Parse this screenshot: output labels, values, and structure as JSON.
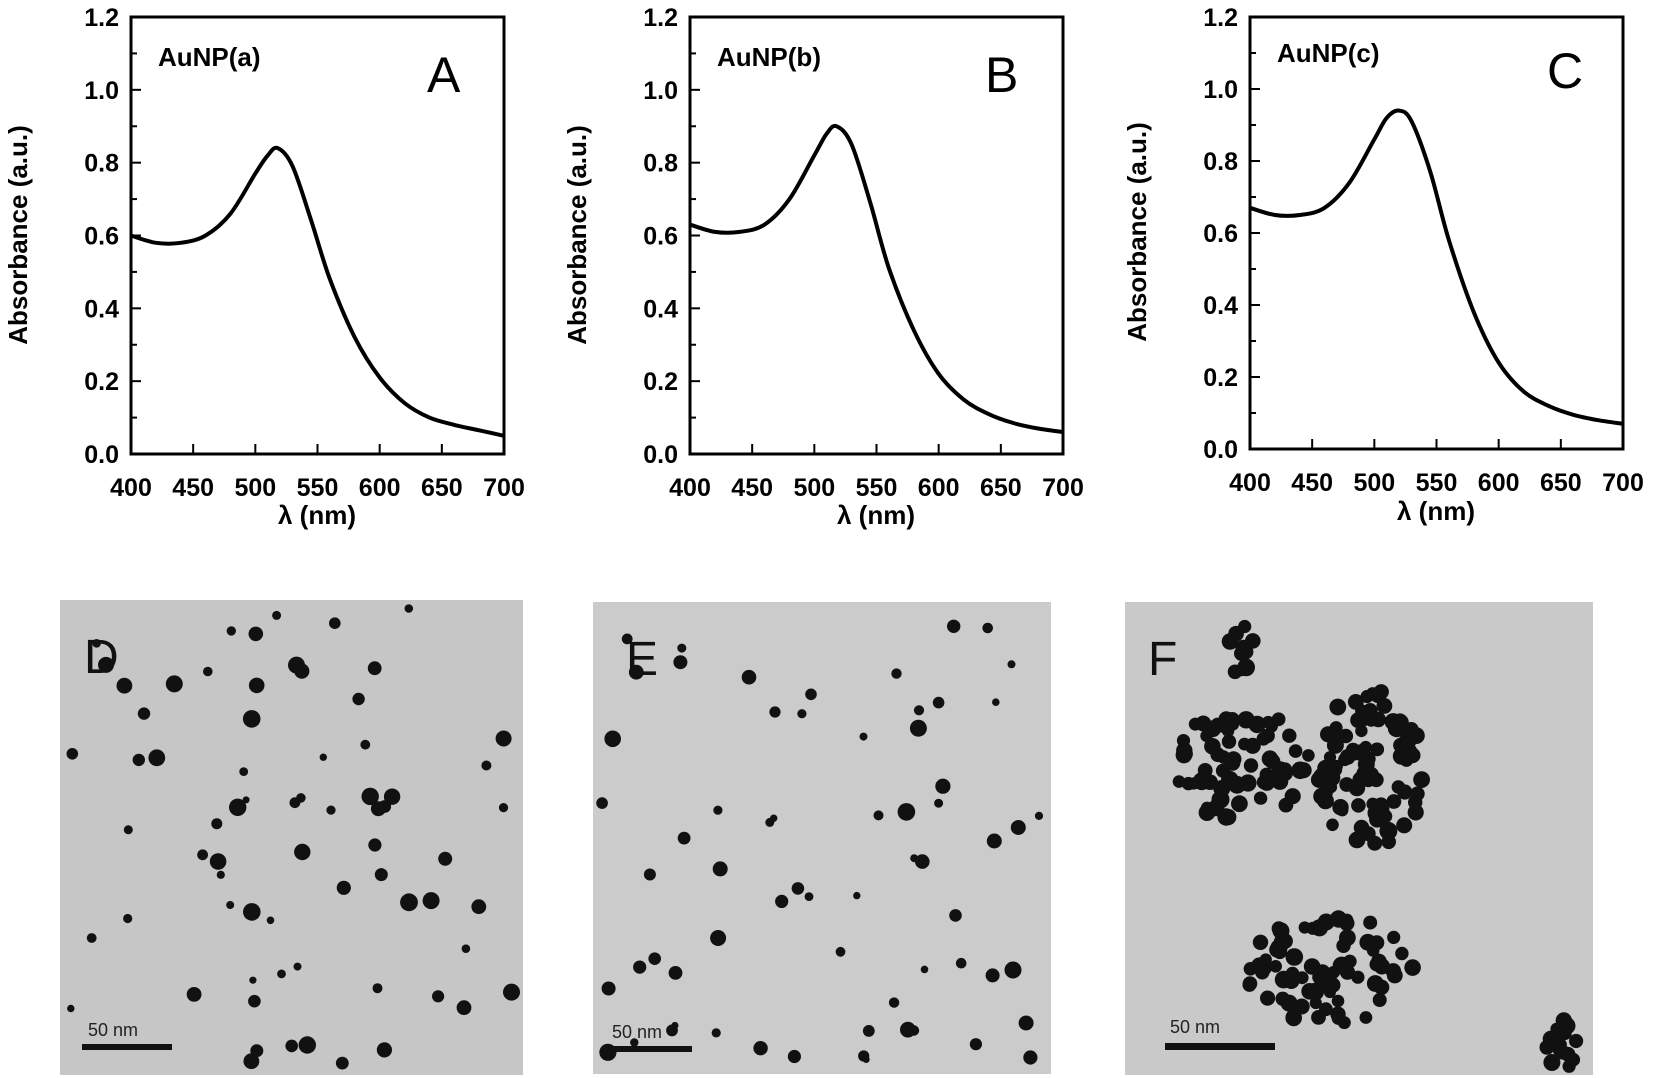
{
  "chart_data": [
    {
      "type": "line",
      "panel": "A",
      "sample_label": "AuNP(a)",
      "xlabel": "λ (nm)",
      "ylabel": "Absorbance (a.u.)",
      "xlim": [
        400,
        700
      ],
      "ylim": [
        0,
        1.2
      ],
      "x_ticks": [
        "400",
        "450",
        "500",
        "550",
        "600",
        "650",
        "700"
      ],
      "y_ticks": [
        "0.0",
        "0.2",
        "0.4",
        "0.6",
        "0.8",
        "1.0",
        "1.2"
      ],
      "x": [
        400,
        420,
        440,
        460,
        480,
        500,
        510,
        518,
        530,
        545,
        560,
        580,
        600,
        620,
        640,
        660,
        680,
        700
      ],
      "y": [
        0.6,
        0.58,
        0.58,
        0.6,
        0.66,
        0.77,
        0.82,
        0.84,
        0.79,
        0.64,
        0.48,
        0.32,
        0.21,
        0.14,
        0.1,
        0.08,
        0.065,
        0.05
      ]
    },
    {
      "type": "line",
      "panel": "B",
      "sample_label": "AuNP(b)",
      "xlabel": "λ (nm)",
      "ylabel": "Absorbance (a.u.)",
      "xlim": [
        400,
        700
      ],
      "ylim": [
        0,
        1.2
      ],
      "x_ticks": [
        "400",
        "450",
        "500",
        "550",
        "600",
        "650",
        "700"
      ],
      "y_ticks": [
        "0.0",
        "0.2",
        "0.4",
        "0.6",
        "0.8",
        "1.0",
        "1.2"
      ],
      "x": [
        400,
        420,
        440,
        460,
        480,
        500,
        510,
        518,
        530,
        545,
        560,
        580,
        600,
        620,
        640,
        660,
        680,
        700
      ],
      "y": [
        0.63,
        0.61,
        0.61,
        0.63,
        0.7,
        0.82,
        0.88,
        0.9,
        0.85,
        0.69,
        0.51,
        0.34,
        0.22,
        0.15,
        0.11,
        0.085,
        0.07,
        0.06
      ]
    },
    {
      "type": "line",
      "panel": "C",
      "sample_label": "AuNP(c)",
      "xlabel": "λ (nm)",
      "ylabel": "Absorbance (a.u.)",
      "xlim": [
        400,
        700
      ],
      "ylim": [
        0,
        1.2
      ],
      "x_ticks": [
        "400",
        "450",
        "500",
        "550",
        "600",
        "650",
        "700"
      ],
      "y_ticks": [
        "0.0",
        "0.2",
        "0.4",
        "0.6",
        "0.8",
        "1.0",
        "1.2"
      ],
      "x": [
        400,
        420,
        440,
        460,
        480,
        500,
        510,
        520,
        530,
        545,
        560,
        580,
        600,
        620,
        640,
        660,
        680,
        700
      ],
      "y": [
        0.67,
        0.65,
        0.65,
        0.67,
        0.74,
        0.86,
        0.92,
        0.94,
        0.91,
        0.77,
        0.58,
        0.38,
        0.24,
        0.16,
        0.12,
        0.095,
        0.08,
        0.07
      ]
    }
  ],
  "tem_panels": [
    {
      "letter": "D",
      "scale_label": "50 nm",
      "morphology": "dispersed"
    },
    {
      "letter": "E",
      "scale_label": "50 nm",
      "morphology": "dispersed"
    },
    {
      "letter": "F",
      "scale_label": "50 nm",
      "morphology": "aggregated"
    }
  ],
  "colors": {
    "line": "#000000",
    "tem_background": "#c8c8c8",
    "particle": "#111111"
  }
}
